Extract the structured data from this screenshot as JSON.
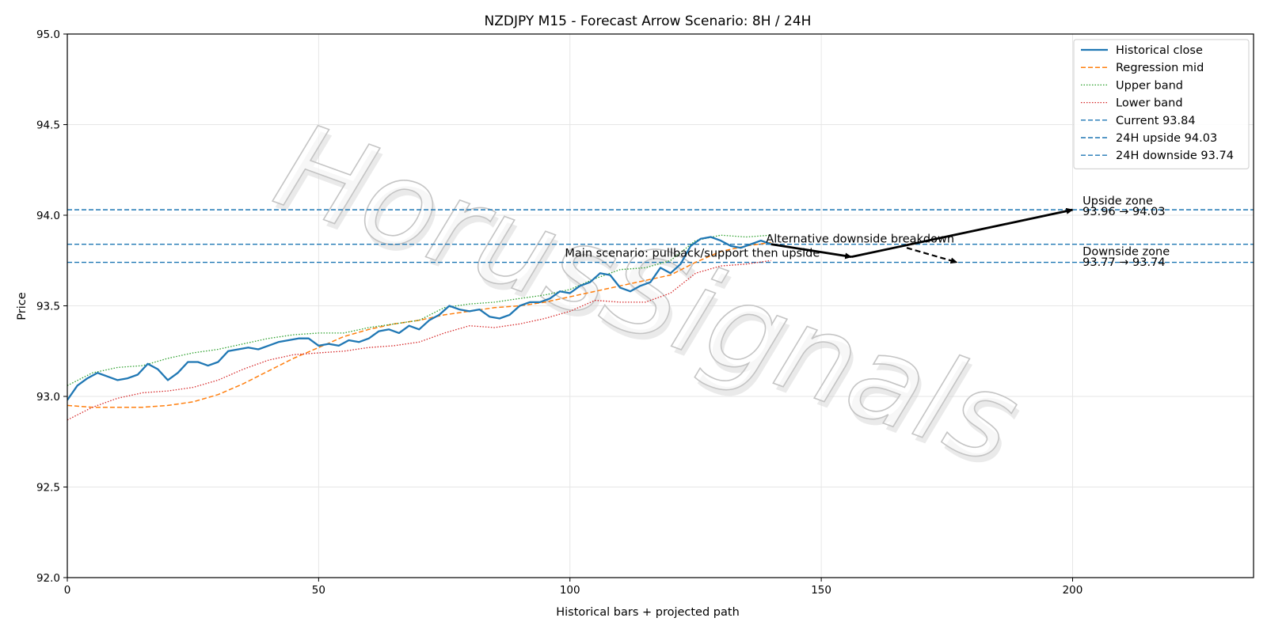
{
  "chart_data": {
    "type": "line",
    "title": "NZDJPY M15 - Forecast Arrow Scenario: 8H / 24H",
    "xlabel": "Historical bars + projected path",
    "ylabel": "Price",
    "xlim": [
      0,
      236
    ],
    "ylim": [
      92.0,
      95.0
    ],
    "xticks": [
      0,
      50,
      100,
      150,
      200
    ],
    "yticks": [
      92.0,
      92.5,
      93.0,
      93.5,
      94.0,
      94.5,
      95.0
    ],
    "ytick_labels": [
      "92.0",
      "92.5",
      "93.0",
      "93.5",
      "94.0",
      "94.5",
      "95.0"
    ],
    "grid": true,
    "legend_position": "top-right",
    "watermark": "HorusSignals",
    "colors": {
      "historical": "#1f77b4",
      "mid": "#ff7f0e",
      "upper": "#2ca02c",
      "lower": "#d62728",
      "levels": "#1f77b4",
      "arrows": "#000000"
    },
    "series": [
      {
        "name": "Historical close",
        "style": "solid",
        "points": [
          [
            0,
            92.98
          ],
          [
            2,
            93.06
          ],
          [
            4,
            93.1
          ],
          [
            6,
            93.13
          ],
          [
            8,
            93.11
          ],
          [
            10,
            93.09
          ],
          [
            12,
            93.1
          ],
          [
            14,
            93.12
          ],
          [
            16,
            93.18
          ],
          [
            18,
            93.15
          ],
          [
            20,
            93.09
          ],
          [
            22,
            93.13
          ],
          [
            24,
            93.19
          ],
          [
            26,
            93.19
          ],
          [
            28,
            93.17
          ],
          [
            30,
            93.19
          ],
          [
            32,
            93.25
          ],
          [
            34,
            93.26
          ],
          [
            36,
            93.27
          ],
          [
            38,
            93.26
          ],
          [
            40,
            93.28
          ],
          [
            42,
            93.3
          ],
          [
            44,
            93.31
          ],
          [
            46,
            93.32
          ],
          [
            48,
            93.32
          ],
          [
            50,
            93.28
          ],
          [
            52,
            93.29
          ],
          [
            54,
            93.28
          ],
          [
            56,
            93.31
          ],
          [
            58,
            93.3
          ],
          [
            60,
            93.32
          ],
          [
            62,
            93.36
          ],
          [
            64,
            93.37
          ],
          [
            66,
            93.35
          ],
          [
            68,
            93.39
          ],
          [
            70,
            93.37
          ],
          [
            72,
            93.42
          ],
          [
            74,
            93.45
          ],
          [
            76,
            93.5
          ],
          [
            78,
            93.48
          ],
          [
            80,
            93.47
          ],
          [
            82,
            93.48
          ],
          [
            84,
            93.44
          ],
          [
            86,
            93.43
          ],
          [
            88,
            93.45
          ],
          [
            90,
            93.5
          ],
          [
            92,
            93.52
          ],
          [
            94,
            93.52
          ],
          [
            96,
            93.54
          ],
          [
            98,
            93.58
          ],
          [
            100,
            93.57
          ],
          [
            102,
            93.61
          ],
          [
            104,
            93.63
          ],
          [
            106,
            93.68
          ],
          [
            108,
            93.67
          ],
          [
            110,
            93.6
          ],
          [
            112,
            93.58
          ],
          [
            114,
            93.61
          ],
          [
            116,
            93.63
          ],
          [
            118,
            93.71
          ],
          [
            120,
            93.68
          ],
          [
            122,
            93.73
          ],
          [
            124,
            93.83
          ],
          [
            126,
            93.87
          ],
          [
            128,
            93.88
          ],
          [
            130,
            93.86
          ],
          [
            132,
            93.83
          ],
          [
            134,
            93.82
          ],
          [
            136,
            93.84
          ],
          [
            138,
            93.86
          ],
          [
            140,
            93.84
          ]
        ]
      },
      {
        "name": "Regression mid",
        "style": "dashed",
        "points": [
          [
            0,
            92.95
          ],
          [
            5,
            92.94
          ],
          [
            10,
            92.94
          ],
          [
            15,
            92.94
          ],
          [
            20,
            92.95
          ],
          [
            25,
            92.97
          ],
          [
            30,
            93.01
          ],
          [
            35,
            93.07
          ],
          [
            40,
            93.14
          ],
          [
            45,
            93.21
          ],
          [
            50,
            93.27
          ],
          [
            55,
            93.33
          ],
          [
            60,
            93.37
          ],
          [
            65,
            93.4
          ],
          [
            70,
            93.42
          ],
          [
            75,
            93.45
          ],
          [
            80,
            93.47
          ],
          [
            85,
            93.49
          ],
          [
            90,
            93.5
          ],
          [
            95,
            93.52
          ],
          [
            100,
            93.55
          ],
          [
            105,
            93.58
          ],
          [
            110,
            93.61
          ],
          [
            115,
            93.64
          ],
          [
            120,
            93.67
          ],
          [
            125,
            93.74
          ],
          [
            130,
            93.8
          ],
          [
            135,
            93.83
          ],
          [
            140,
            93.85
          ]
        ]
      },
      {
        "name": "Upper band",
        "style": "dotted",
        "points": [
          [
            0,
            93.06
          ],
          [
            5,
            93.13
          ],
          [
            10,
            93.16
          ],
          [
            15,
            93.17
          ],
          [
            20,
            93.21
          ],
          [
            25,
            93.24
          ],
          [
            30,
            93.26
          ],
          [
            35,
            93.29
          ],
          [
            40,
            93.32
          ],
          [
            45,
            93.34
          ],
          [
            50,
            93.35
          ],
          [
            55,
            93.35
          ],
          [
            60,
            93.38
          ],
          [
            65,
            93.4
          ],
          [
            70,
            93.42
          ],
          [
            75,
            93.49
          ],
          [
            80,
            93.51
          ],
          [
            85,
            93.52
          ],
          [
            90,
            93.54
          ],
          [
            95,
            93.56
          ],
          [
            100,
            93.59
          ],
          [
            105,
            93.65
          ],
          [
            110,
            93.7
          ],
          [
            115,
            93.71
          ],
          [
            120,
            93.75
          ],
          [
            125,
            93.86
          ],
          [
            130,
            93.89
          ],
          [
            135,
            93.88
          ],
          [
            140,
            93.89
          ]
        ]
      },
      {
        "name": "Lower band",
        "style": "dotted",
        "points": [
          [
            0,
            92.87
          ],
          [
            5,
            92.94
          ],
          [
            10,
            92.99
          ],
          [
            15,
            93.02
          ],
          [
            20,
            93.03
          ],
          [
            25,
            93.05
          ],
          [
            30,
            93.09
          ],
          [
            35,
            93.15
          ],
          [
            40,
            93.2
          ],
          [
            45,
            93.23
          ],
          [
            50,
            93.24
          ],
          [
            55,
            93.25
          ],
          [
            60,
            93.27
          ],
          [
            65,
            93.28
          ],
          [
            70,
            93.3
          ],
          [
            75,
            93.35
          ],
          [
            80,
            93.39
          ],
          [
            85,
            93.38
          ],
          [
            90,
            93.4
          ],
          [
            95,
            93.43
          ],
          [
            100,
            93.47
          ],
          [
            105,
            93.53
          ],
          [
            110,
            93.52
          ],
          [
            115,
            93.52
          ],
          [
            120,
            93.57
          ],
          [
            125,
            93.68
          ],
          [
            130,
            93.72
          ],
          [
            135,
            93.73
          ],
          [
            140,
            93.75
          ]
        ]
      }
    ],
    "levels": [
      {
        "name": "Current 93.84",
        "value": 93.84
      },
      {
        "name": "24H upside 94.03",
        "value": 94.03
      },
      {
        "name": "24H downside 93.74",
        "value": 93.74
      }
    ],
    "arrows": [
      {
        "from": [
          140,
          93.84
        ],
        "to": [
          156,
          93.77
        ],
        "style": "solid"
      },
      {
        "from": [
          156,
          93.77
        ],
        "to": [
          200,
          94.03
        ],
        "style": "solid"
      },
      {
        "from": [
          167,
          93.82
        ],
        "to": [
          177,
          93.74
        ],
        "style": "dashed"
      }
    ],
    "annotations": [
      {
        "text": "Main scenario: pullback/support then upside",
        "x": 99,
        "y": 93.77
      },
      {
        "text": "Alternative downside breakdown",
        "x": 139,
        "y": 93.85
      },
      {
        "text": "Upside zone",
        "x": 202,
        "y": 94.06
      },
      {
        "text": "93.96 → 94.03",
        "x": 202,
        "y": 94.0
      },
      {
        "text": "Downside zone",
        "x": 202,
        "y": 93.78
      },
      {
        "text": "93.77 → 93.74",
        "x": 202,
        "y": 93.72
      }
    ]
  }
}
